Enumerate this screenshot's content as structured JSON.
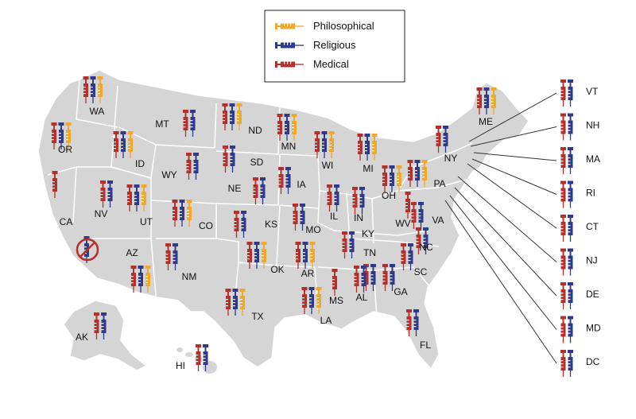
{
  "colors": {
    "philosophical": "#F2A82A",
    "religious": "#2E3A8C",
    "medical": "#B5302B",
    "land": "#D5D5D5",
    "border": "#FFFFFF",
    "callout_line": "#333333",
    "no_exemption_circle": "#B5302B"
  },
  "legend": {
    "items": [
      {
        "key": "philosophical",
        "label": "Philosophical",
        "icon": "syringe-icon"
      },
      {
        "key": "religious",
        "label": "Religious",
        "icon": "syringe-icon"
      },
      {
        "key": "medical",
        "label": "Medical",
        "icon": "syringe-icon"
      }
    ]
  },
  "states": [
    {
      "abbr": "WA",
      "exemptions": [
        "medical",
        "religious",
        "philosophical"
      ]
    },
    {
      "abbr": "OR",
      "exemptions": [
        "medical",
        "religious",
        "philosophical"
      ]
    },
    {
      "abbr": "CA",
      "exemptions": [
        "medical"
      ]
    },
    {
      "abbr": "NV",
      "exemptions": [
        "medical",
        "religious"
      ]
    },
    {
      "abbr": "ID",
      "exemptions": [
        "medical",
        "religious",
        "philosophical"
      ]
    },
    {
      "abbr": "MT",
      "exemptions": [
        "medical",
        "religious"
      ]
    },
    {
      "abbr": "WY",
      "exemptions": [
        "medical",
        "religious"
      ]
    },
    {
      "abbr": "UT",
      "exemptions": [
        "medical",
        "religious",
        "philosophical"
      ]
    },
    {
      "abbr": "AZ",
      "exemptions": [
        "medical",
        "religious",
        "philosophical"
      ]
    },
    {
      "abbr": "CO",
      "exemptions": [
        "medical",
        "religious",
        "philosophical"
      ]
    },
    {
      "abbr": "NM",
      "exemptions": [
        "medical",
        "religious"
      ]
    },
    {
      "abbr": "ND",
      "exemptions": [
        "medical",
        "religious",
        "philosophical"
      ]
    },
    {
      "abbr": "SD",
      "exemptions": [
        "medical",
        "religious"
      ]
    },
    {
      "abbr": "NE",
      "exemptions": [
        "medical",
        "religious"
      ]
    },
    {
      "abbr": "KS",
      "exemptions": [
        "medical",
        "religious"
      ]
    },
    {
      "abbr": "OK",
      "exemptions": [
        "medical",
        "religious",
        "philosophical"
      ]
    },
    {
      "abbr": "TX",
      "exemptions": [
        "medical",
        "religious",
        "philosophical"
      ]
    },
    {
      "abbr": "MN",
      "exemptions": [
        "medical",
        "religious",
        "philosophical"
      ]
    },
    {
      "abbr": "IA",
      "exemptions": [
        "medical",
        "religious"
      ]
    },
    {
      "abbr": "MO",
      "exemptions": [
        "medical",
        "religious"
      ]
    },
    {
      "abbr": "AR",
      "exemptions": [
        "medical",
        "religious",
        "philosophical"
      ]
    },
    {
      "abbr": "LA",
      "exemptions": [
        "medical",
        "religious",
        "philosophical"
      ]
    },
    {
      "abbr": "WI",
      "exemptions": [
        "medical",
        "religious",
        "philosophical"
      ]
    },
    {
      "abbr": "IL",
      "exemptions": [
        "medical",
        "religious"
      ]
    },
    {
      "abbr": "MI",
      "exemptions": [
        "medical",
        "religious",
        "philosophical"
      ]
    },
    {
      "abbr": "IN",
      "exemptions": [
        "medical",
        "religious"
      ]
    },
    {
      "abbr": "OH",
      "exemptions": [
        "medical",
        "religious",
        "philosophical"
      ]
    },
    {
      "abbr": "KY",
      "exemptions": [
        "medical",
        "religious"
      ]
    },
    {
      "abbr": "TN",
      "exemptions": [
        "medical",
        "religious"
      ]
    },
    {
      "abbr": "MS",
      "exemptions": [
        "medical"
      ]
    },
    {
      "abbr": "AL",
      "exemptions": [
        "medical",
        "religious"
      ]
    },
    {
      "abbr": "GA",
      "exemptions": [
        "medical",
        "religious"
      ]
    },
    {
      "abbr": "FL",
      "exemptions": [
        "medical",
        "religious"
      ]
    },
    {
      "abbr": "SC",
      "exemptions": [
        "medical",
        "religious"
      ]
    },
    {
      "abbr": "NC",
      "exemptions": [
        "medical",
        "religious"
      ]
    },
    {
      "abbr": "VA",
      "exemptions": [
        "medical",
        "religious"
      ]
    },
    {
      "abbr": "WV",
      "exemptions": [
        "medical"
      ]
    },
    {
      "abbr": "PA",
      "exemptions": [
        "medical",
        "religious",
        "philosophical"
      ]
    },
    {
      "abbr": "NY",
      "exemptions": [
        "medical",
        "religious"
      ]
    },
    {
      "abbr": "ME",
      "exemptions": [
        "medical",
        "religious",
        "philosophical"
      ]
    },
    {
      "abbr": "AK",
      "exemptions": [
        "medical",
        "religious"
      ]
    },
    {
      "abbr": "HI",
      "exemptions": [
        "medical",
        "religious"
      ]
    }
  ],
  "callouts": [
    {
      "abbr": "VT",
      "exemptions": [
        "medical",
        "religious"
      ]
    },
    {
      "abbr": "NH",
      "exemptions": [
        "medical",
        "religious"
      ]
    },
    {
      "abbr": "MA",
      "exemptions": [
        "medical",
        "religious"
      ]
    },
    {
      "abbr": "RI",
      "exemptions": [
        "medical",
        "religious"
      ]
    },
    {
      "abbr": "CT",
      "exemptions": [
        "medical",
        "religious"
      ]
    },
    {
      "abbr": "NJ",
      "exemptions": [
        "medical",
        "religious"
      ]
    },
    {
      "abbr": "DE",
      "exemptions": [
        "medical",
        "religious"
      ]
    },
    {
      "abbr": "MD",
      "exemptions": [
        "medical",
        "religious"
      ]
    },
    {
      "abbr": "DC",
      "exemptions": [
        "medical",
        "religious"
      ]
    }
  ],
  "crossed_out": [
    {
      "state": "CA",
      "exemption": "religious",
      "icon": "prohibited-icon"
    }
  ]
}
